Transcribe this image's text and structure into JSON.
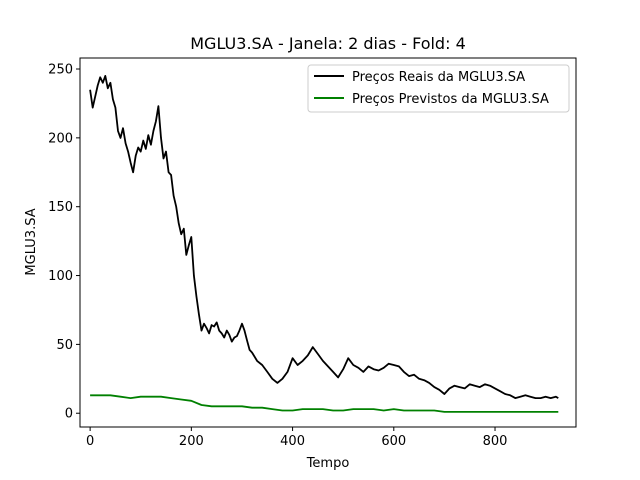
{
  "chart_data": {
    "type": "line",
    "title": "MGLU3.SA - Janela: 2 dias - Fold: 4",
    "xlabel": "Tempo",
    "ylabel": "MGLU3.SA",
    "xlim": [
      -20,
      960
    ],
    "ylim": [
      -10,
      258
    ],
    "xticks": [
      0,
      200,
      400,
      600,
      800
    ],
    "yticks": [
      0,
      50,
      100,
      150,
      200,
      250
    ],
    "grid": false,
    "legend_position": "top-right",
    "series": [
      {
        "name": "Preços Reais da MGLU3.SA",
        "color": "#000000",
        "x": [
          0,
          5,
          10,
          15,
          20,
          25,
          30,
          35,
          40,
          45,
          50,
          55,
          60,
          65,
          70,
          75,
          80,
          85,
          90,
          95,
          100,
          105,
          110,
          115,
          120,
          125,
          130,
          135,
          140,
          145,
          150,
          155,
          160,
          165,
          170,
          175,
          180,
          185,
          190,
          195,
          200,
          205,
          210,
          215,
          220,
          225,
          230,
          235,
          240,
          245,
          250,
          255,
          260,
          265,
          270,
          275,
          280,
          285,
          290,
          295,
          300,
          305,
          310,
          315,
          320,
          330,
          340,
          350,
          360,
          370,
          380,
          390,
          400,
          410,
          420,
          430,
          440,
          450,
          460,
          470,
          480,
          490,
          500,
          510,
          520,
          530,
          540,
          550,
          560,
          570,
          580,
          590,
          600,
          610,
          620,
          630,
          640,
          650,
          660,
          670,
          680,
          690,
          700,
          710,
          720,
          730,
          740,
          750,
          760,
          770,
          780,
          790,
          800,
          810,
          820,
          830,
          840,
          850,
          860,
          870,
          880,
          890,
          900,
          910,
          920,
          925
        ],
        "values": [
          235,
          222,
          230,
          238,
          244,
          240,
          245,
          236,
          240,
          228,
          222,
          205,
          200,
          207,
          196,
          190,
          182,
          175,
          187,
          193,
          190,
          198,
          192,
          202,
          195,
          205,
          212,
          223,
          200,
          185,
          190,
          175,
          173,
          158,
          150,
          138,
          130,
          134,
          115,
          122,
          128,
          100,
          85,
          72,
          60,
          65,
          62,
          58,
          64,
          63,
          66,
          60,
          58,
          55,
          60,
          57,
          52,
          55,
          56,
          60,
          65,
          60,
          53,
          46,
          44,
          38,
          35,
          30,
          25,
          22,
          25,
          30,
          40,
          35,
          38,
          42,
          48,
          43,
          38,
          34,
          30,
          26,
          32,
          40,
          35,
          33,
          30,
          34,
          32,
          31,
          33,
          36,
          35,
          34,
          30,
          27,
          28,
          25,
          24,
          22,
          19,
          17,
          14,
          18,
          20,
          19,
          18,
          21,
          20,
          19,
          21,
          20,
          18,
          16,
          14,
          13,
          11,
          12,
          13,
          12,
          11,
          11,
          12,
          11,
          12,
          11
        ]
      },
      {
        "name": "Preços Previstos da MGLU3.SA",
        "color": "#008000",
        "x": [
          0,
          20,
          40,
          60,
          80,
          100,
          120,
          140,
          160,
          180,
          200,
          220,
          240,
          260,
          280,
          300,
          320,
          340,
          360,
          380,
          400,
          420,
          440,
          460,
          480,
          500,
          520,
          540,
          560,
          580,
          600,
          620,
          640,
          660,
          680,
          700,
          720,
          740,
          760,
          780,
          800,
          820,
          840,
          860,
          880,
          900,
          925
        ],
        "values": [
          13,
          13,
          13,
          12,
          11,
          12,
          12,
          12,
          11,
          10,
          9,
          6,
          5,
          5,
          5,
          5,
          4,
          4,
          3,
          2,
          2,
          3,
          3,
          3,
          2,
          2,
          3,
          3,
          3,
          2,
          3,
          2,
          2,
          2,
          2,
          1,
          1,
          1,
          1,
          1,
          1,
          1,
          1,
          1,
          1,
          1,
          1
        ]
      }
    ]
  }
}
